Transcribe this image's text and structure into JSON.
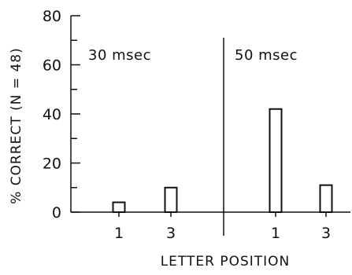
{
  "chart_data": {
    "type": "bar",
    "xlabel": "LETTER POSITION",
    "ylabel": "% CORRECT (N = 48)",
    "ylim": [
      0,
      80
    ],
    "yticks": [
      0,
      20,
      40,
      60,
      80
    ],
    "ytick_labels": [
      "0",
      "20",
      "40",
      "60",
      "80"
    ],
    "grid": false,
    "panels": [
      {
        "label": "30 msec",
        "categories": [
          "1",
          "3"
        ],
        "values": [
          4,
          10
        ]
      },
      {
        "label": "50 msec",
        "categories": [
          "1",
          "3"
        ],
        "values": [
          42,
          11
        ]
      }
    ]
  }
}
